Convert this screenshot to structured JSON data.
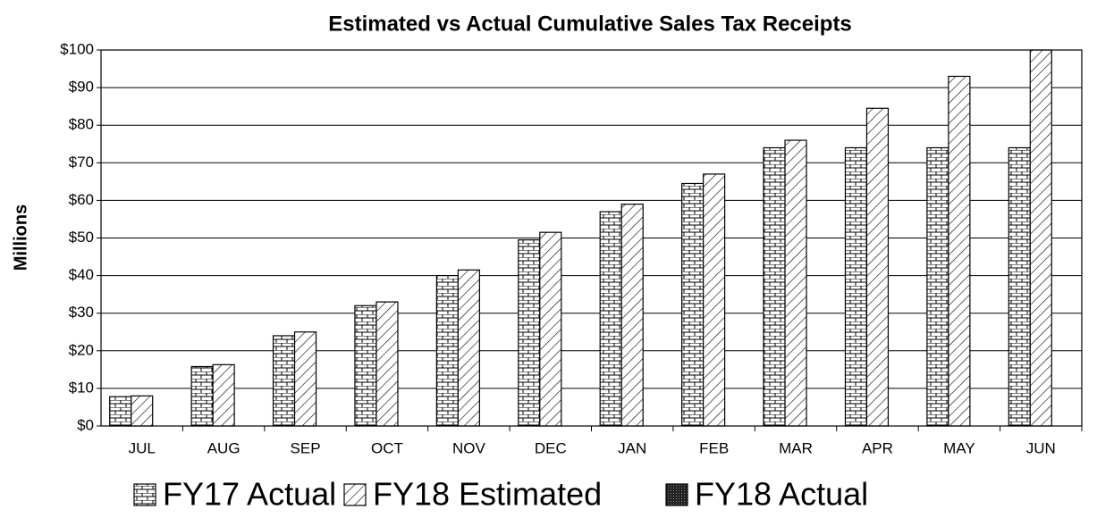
{
  "chart_data": {
    "type": "bar",
    "title": "Estimated vs Actual Cumulative Sales Tax Receipts",
    "ylabel": "Millions",
    "categories": [
      "JUL",
      "AUG",
      "SEP",
      "OCT",
      "NOV",
      "DEC",
      "JAN",
      "FEB",
      "MAR",
      "APR",
      "MAY",
      "JUN"
    ],
    "series": [
      {
        "name": "FY17 Actual",
        "color": "#000000",
        "pattern": "brick",
        "values": [
          7.8,
          15.8,
          24,
          32,
          40,
          49.5,
          57,
          64.5,
          74,
          74,
          74,
          74
        ]
      },
      {
        "name": "FY18 Estimated",
        "color": "#000000",
        "pattern": "hatch",
        "values": [
          8,
          16.3,
          25,
          33,
          41.5,
          51.5,
          59,
          67,
          76,
          84.5,
          93,
          100
        ]
      },
      {
        "name": "FY18 Actual",
        "color": "#000000",
        "pattern": "dark",
        "values": [
          null,
          null,
          null,
          null,
          null,
          null,
          null,
          null,
          null,
          null,
          null,
          null
        ]
      }
    ],
    "ylim": [
      0,
      100
    ],
    "yticks": [
      {
        "value": 0,
        "label": "$0"
      },
      {
        "value": 10,
        "label": "$10"
      },
      {
        "value": 20,
        "label": "$20"
      },
      {
        "value": 30,
        "label": "$30"
      },
      {
        "value": 40,
        "label": "$40"
      },
      {
        "value": 50,
        "label": "$50"
      },
      {
        "value": 60,
        "label": "$60"
      },
      {
        "value": 70,
        "label": "$70"
      },
      {
        "value": 80,
        "label": "$80"
      },
      {
        "value": 90,
        "label": "$90"
      },
      {
        "value": 100,
        "label": "$100"
      }
    ],
    "grid": true,
    "legend": "bottom"
  }
}
